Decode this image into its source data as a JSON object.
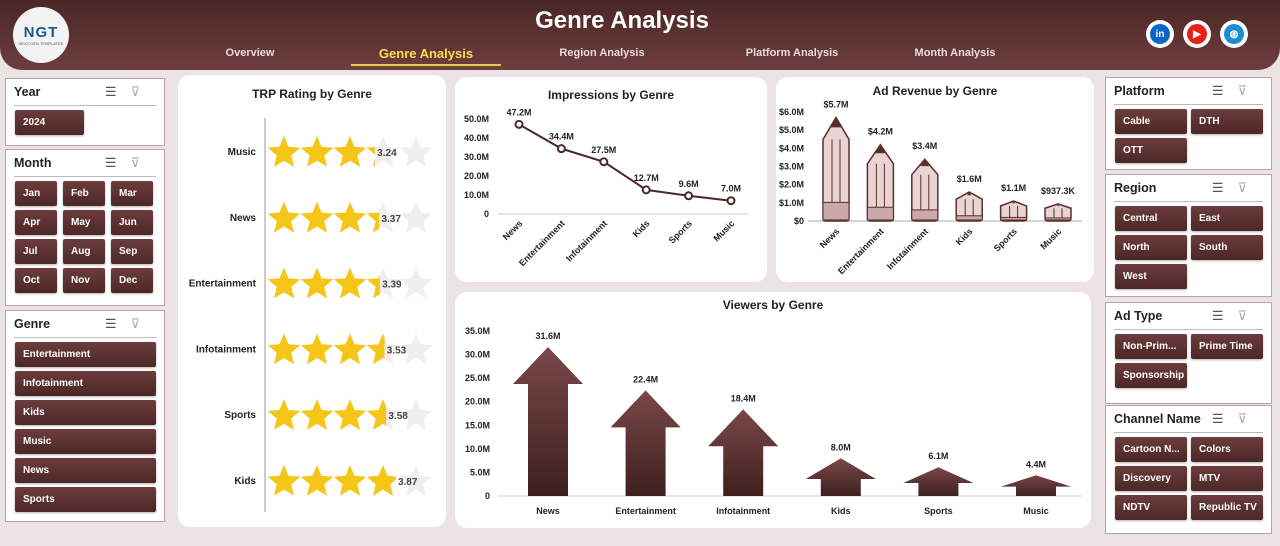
{
  "header": {
    "title": "Genre Analysis",
    "logo_text": "NGT",
    "logo_sub": "NEXT GEN TEMPLATES",
    "nav": [
      {
        "label": "Overview",
        "active": false
      },
      {
        "label": "Genre Analysis",
        "active": true
      },
      {
        "label": "Region Analysis",
        "active": false
      },
      {
        "label": "Platform Analysis",
        "active": false
      },
      {
        "label": "Month Analysis",
        "active": false
      }
    ],
    "social": [
      {
        "icon": "linkedin-icon",
        "label": "in",
        "color": "#0a66c2"
      },
      {
        "icon": "youtube-icon",
        "label": "▶",
        "color": "#e62117"
      },
      {
        "icon": "globe-icon",
        "label": "◍",
        "color": "#1a8fd6"
      }
    ]
  },
  "slicers": {
    "year": {
      "title": "Year",
      "items": [
        "2024"
      ]
    },
    "month": {
      "title": "Month",
      "items": [
        "Jan",
        "Feb",
        "Mar",
        "Apr",
        "May",
        "Jun",
        "Jul",
        "Aug",
        "Sep",
        "Oct",
        "Nov",
        "Dec"
      ]
    },
    "genre": {
      "title": "Genre",
      "items": [
        "Entertainment",
        "Infotainment",
        "Kids",
        "Music",
        "News",
        "Sports"
      ]
    },
    "platform": {
      "title": "Platform",
      "items": [
        "Cable",
        "DTH",
        "OTT"
      ]
    },
    "region": {
      "title": "Region",
      "items": [
        "Central",
        "East",
        "North",
        "South",
        "West"
      ]
    },
    "adtype": {
      "title": "Ad Type",
      "items": [
        "Non-Prim...",
        "Prime Time",
        "Sponsorship"
      ]
    },
    "channel": {
      "title": "Channel Name",
      "items": [
        "Cartoon N...",
        "Colors",
        "Discovery",
        "MTV",
        "NDTV",
        "Republic TV"
      ]
    }
  },
  "colors": {
    "accent": "#5a2e2e",
    "star": "#f5c518",
    "pencil_fill": "#e9d3d3"
  },
  "chart_data": [
    {
      "type": "bar",
      "title": "TRP Rating by Genre",
      "mark": "stars",
      "max": 5,
      "categories": [
        "Music",
        "News",
        "Entertainment",
        "Infotainment",
        "Sports",
        "Kids"
      ],
      "values": [
        3.24,
        3.37,
        3.39,
        3.53,
        3.58,
        3.87
      ],
      "labels": [
        "3.24",
        "3.37",
        "3.39",
        "3.53",
        "3.58",
        "3.87"
      ]
    },
    {
      "type": "line",
      "title": "Impressions by Genre",
      "categories": [
        "News",
        "Entertainment",
        "Infotainment",
        "Kids",
        "Sports",
        "Music"
      ],
      "values": [
        47.2,
        34.4,
        27.5,
        12.7,
        9.6,
        7.0
      ],
      "labels": [
        "47.2M",
        "34.4M",
        "27.5M",
        "12.7M",
        "9.6M",
        "7.0M"
      ],
      "ylim": [
        0,
        50
      ],
      "yticks": [
        "0",
        "10.0M",
        "20.0M",
        "30.0M",
        "40.0M",
        "50.0M"
      ]
    },
    {
      "type": "bar",
      "title": "Ad Revenue by Genre",
      "mark": "pencil",
      "categories": [
        "News",
        "Entertainment",
        "Infotainment",
        "Kids",
        "Sports",
        "Music"
      ],
      "values": [
        5.7,
        4.2,
        3.4,
        1.6,
        1.1,
        0.9373
      ],
      "labels": [
        "$5.7M",
        "$4.2M",
        "$3.4M",
        "$1.6M",
        "$1.1M",
        "$937.3K"
      ],
      "ylim": [
        0,
        6
      ],
      "yticks": [
        "$0",
        "$1.0M",
        "$2.0M",
        "$3.0M",
        "$4.0M",
        "$5.0M",
        "$6.0M"
      ]
    },
    {
      "type": "bar",
      "title": "Viewers by Genre",
      "mark": "arrow",
      "categories": [
        "News",
        "Entertainment",
        "Infotainment",
        "Kids",
        "Sports",
        "Music"
      ],
      "values": [
        31.6,
        22.4,
        18.4,
        8.0,
        6.1,
        4.4
      ],
      "labels": [
        "31.6M",
        "22.4M",
        "18.4M",
        "8.0M",
        "6.1M",
        "4.4M"
      ],
      "ylim": [
        0,
        35
      ],
      "yticks": [
        "0",
        "5.0M",
        "10.0M",
        "15.0M",
        "20.0M",
        "25.0M",
        "30.0M",
        "35.0M"
      ]
    }
  ]
}
